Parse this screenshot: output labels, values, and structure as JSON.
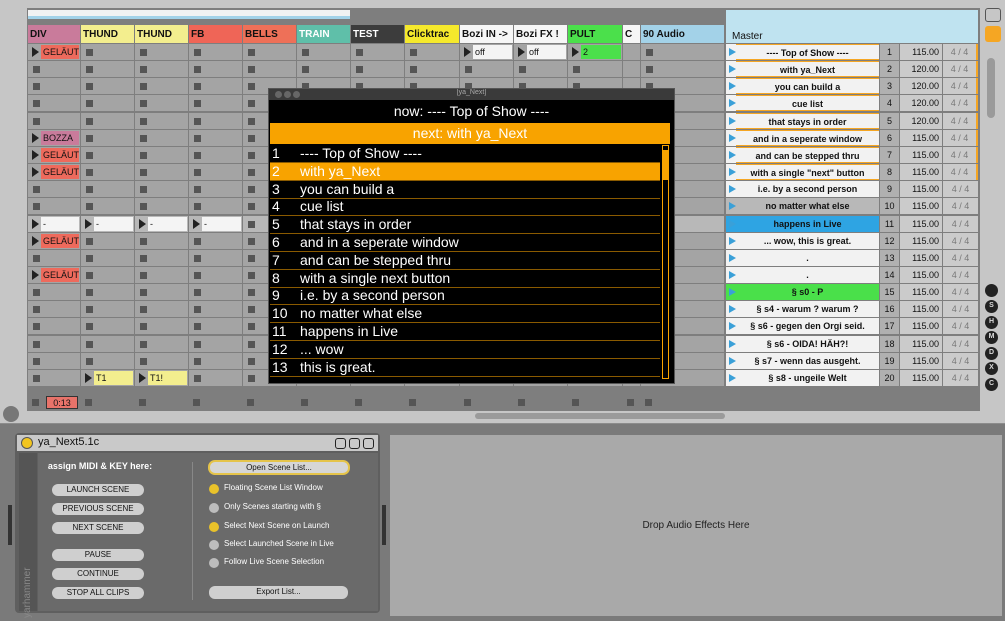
{
  "session": {
    "tracks": [
      {
        "name": "DIV",
        "color": "#c97b9b",
        "clips": [
          {
            "label": "GELÄUT",
            "color": "#ee6a5c"
          },
          null,
          null,
          null,
          null,
          {
            "label": "BOZZA",
            "color": "#c97b9b"
          },
          {
            "label": "GELÄUT",
            "color": "#ee6a5c"
          },
          {
            "label": "GELÄUT",
            "color": "#ee6a5c"
          },
          null,
          null,
          {
            "label": "-",
            "color": "#f4f4f4"
          },
          {
            "label": "GELÄUT",
            "color": "#ee6a5c"
          },
          null,
          {
            "label": "GELÄUT",
            "color": "#ee6a5c"
          }
        ]
      },
      {
        "name": "THUND",
        "color": "#f3ee8e",
        "clips": [
          null,
          null,
          null,
          null,
          null,
          null,
          null,
          null,
          null,
          null,
          {
            "label": "-",
            "color": "#f4f4f4"
          },
          null,
          null,
          null,
          null,
          null,
          null,
          null,
          null,
          {
            "label": "T1",
            "color": "#f3ee8e"
          }
        ]
      },
      {
        "name": "THUND",
        "color": "#f3ee8e",
        "clips": [
          null,
          null,
          null,
          null,
          null,
          null,
          null,
          null,
          null,
          null,
          {
            "label": "-",
            "color": "#f4f4f4"
          },
          null,
          null,
          null,
          null,
          null,
          null,
          null,
          null,
          {
            "label": "T1!",
            "color": "#f3ee8e"
          }
        ]
      },
      {
        "name": "FB",
        "color": "#ef6557",
        "clips": [
          null,
          null,
          null,
          null,
          null,
          null,
          null,
          null,
          null,
          null,
          {
            "label": "-",
            "color": "#f4f4f4"
          }
        ]
      },
      {
        "name": "BELLS",
        "color": "#ee7058",
        "clips": []
      },
      {
        "name": "TRAIN",
        "color": "#5fbfa9",
        "clips": []
      },
      {
        "name": "TEST",
        "color": "#3c3c3c",
        "clips": []
      },
      {
        "name": "Clicktrac",
        "color": "#f5e92c",
        "clips": []
      },
      {
        "name": "Bozi IN ->",
        "color": "#f6f6f6",
        "clips": [
          {
            "label": "off",
            "color": "#f4f4f4"
          }
        ]
      },
      {
        "name": "Bozi FX !",
        "color": "#f6f6f6",
        "clips": [
          {
            "label": "off",
            "color": "#f4f4f4"
          }
        ]
      },
      {
        "name": "PULT",
        "color": "#4be04b",
        "clips": [
          {
            "label": "2",
            "color": "#4be04b"
          }
        ]
      },
      {
        "name": "C",
        "color": "#f6f6f6",
        "clips": []
      },
      {
        "name": "90 Audio",
        "color": "#a3d2e8",
        "clips": []
      }
    ],
    "clip_time": "0:13"
  },
  "master": {
    "name": "Master",
    "scenes": [
      {
        "number": 1,
        "name": "---- Top of Show ----",
        "tempo": "115.00",
        "signature": "4 / 4"
      },
      {
        "number": 2,
        "name": "with ya_Next",
        "tempo": "120.00",
        "signature": "4 / 4"
      },
      {
        "number": 3,
        "name": "you can build a",
        "tempo": "120.00",
        "signature": "4 / 4"
      },
      {
        "number": 4,
        "name": "cue list",
        "tempo": "120.00",
        "signature": "4 / 4"
      },
      {
        "number": 5,
        "name": "that stays in order",
        "tempo": "120.00",
        "signature": "4 / 4"
      },
      {
        "number": 6,
        "name": "and in a seperate window",
        "tempo": "115.00",
        "signature": "4 / 4"
      },
      {
        "number": 7,
        "name": "and can be stepped thru",
        "tempo": "115.00",
        "signature": "4 / 4"
      },
      {
        "number": 8,
        "name": "with a single \"next\" button",
        "tempo": "115.00",
        "signature": "4 / 4"
      },
      {
        "number": 9,
        "name": "i.e. by a second person",
        "tempo": "115.00",
        "signature": "4 / 4"
      },
      {
        "number": 10,
        "name": "no matter what else",
        "tempo": "115.00",
        "signature": "4 / 4"
      },
      {
        "number": 11,
        "name": "happens in Live",
        "tempo": "115.00",
        "signature": "4 / 4"
      },
      {
        "number": 12,
        "name": "... wow, this is great.",
        "tempo": "115.00",
        "signature": "4 / 4"
      },
      {
        "number": 13,
        "name": ".",
        "tempo": "115.00",
        "signature": "4 / 4"
      },
      {
        "number": 14,
        "name": ".",
        "tempo": "115.00",
        "signature": "4 / 4"
      },
      {
        "number": 15,
        "name": "§ s0 - P",
        "tempo": "115.00",
        "signature": "4 / 4"
      },
      {
        "number": 16,
        "name": "§ s4 - warum ? warum ?",
        "tempo": "115.00",
        "signature": "4 / 4"
      },
      {
        "number": 17,
        "name": "§ s6 - gegen den Orgi seid.",
        "tempo": "115.00",
        "signature": "4 / 4"
      },
      {
        "number": 18,
        "name": "§ s6 - OIDA! HÄH?!",
        "tempo": "115.00",
        "signature": "4 / 4"
      },
      {
        "number": 19,
        "name": "§ s7 - wenn das ausgeht.",
        "tempo": "115.00",
        "signature": "4 / 4"
      },
      {
        "number": 20,
        "name": "§ s8 - ungeile Welt",
        "tempo": "115.00",
        "signature": "4 / 4"
      }
    ]
  },
  "window": {
    "title": "[ya_Next]",
    "now": "now: ---- Top of Show ----",
    "next": "next: with ya_Next",
    "items": [
      {
        "number": 1,
        "text": "---- Top of Show ----"
      },
      {
        "number": 2,
        "text": "with ya_Next"
      },
      {
        "number": 3,
        "text": "you can build a"
      },
      {
        "number": 4,
        "text": "cue list"
      },
      {
        "number": 5,
        "text": "that stays in order"
      },
      {
        "number": 6,
        "text": "and in a seperate window"
      },
      {
        "number": 7,
        "text": "and can be stepped thru"
      },
      {
        "number": 8,
        "text": "with a single next button"
      },
      {
        "number": 9,
        "text": "i.e. by a second person"
      },
      {
        "number": 10,
        "text": "no matter what else"
      },
      {
        "number": 11,
        "text": "happens in Live"
      },
      {
        "number": 12,
        "text": "... wow"
      },
      {
        "number": 13,
        "text": "this is great."
      }
    ]
  },
  "device": {
    "title": "ya_Next5.1c",
    "assign_label": "assign MIDI & KEY here:",
    "buttons": [
      "LAUNCH SCENE",
      "PREVIOUS SCENE",
      "NEXT SCENE",
      "PAUSE",
      "CONTINUE",
      "STOP ALL CLIPS"
    ],
    "open_button": "Open Scene List...",
    "options": [
      {
        "label": "Floating Scene List Window",
        "on": true
      },
      {
        "label": "Only Scenes starting with §",
        "on": false
      },
      {
        "label": "Select Next Scene on Launch",
        "on": true
      },
      {
        "label": "Select Launched Scene in Live",
        "on": false
      },
      {
        "label": "Follow Live Scene Selection",
        "on": false
      }
    ],
    "export_button": "Export List...",
    "vertical_label": "yarhammer"
  },
  "drop_area": "Drop Audio Effects Here",
  "side_buttons": [
    "S",
    "H",
    "M",
    "D",
    "X",
    "C"
  ]
}
